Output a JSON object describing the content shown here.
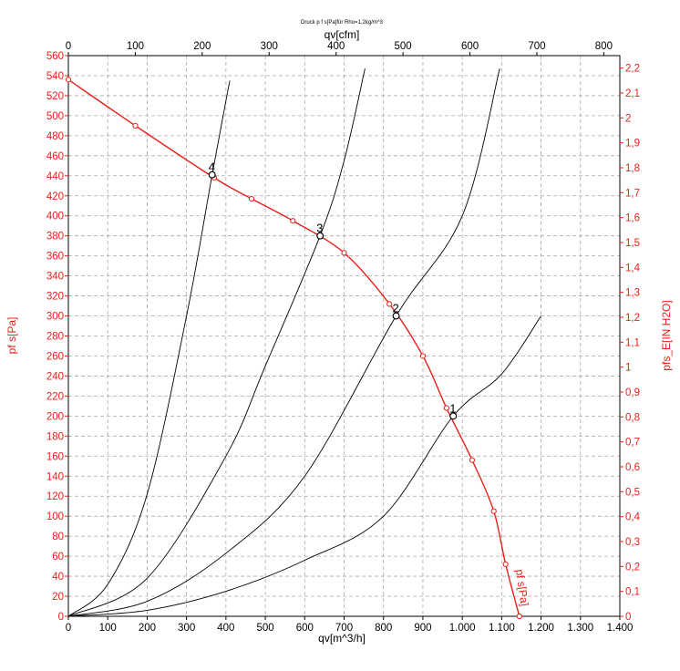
{
  "chart_data": {
    "type": "line",
    "title": "Druck p f s[Pa]für Rho=1,2kg/m^3",
    "xlabel": "qv[m^3/h]",
    "xlabel_top": "qv[cfm]",
    "ylabel": "pf s[Pa]",
    "ylabel_right": "pfs_E[IN H2O]",
    "xlim": [
      0,
      1400
    ],
    "xlim_top": [
      0,
      824
    ],
    "ylim": [
      0,
      560
    ],
    "ylim_right": [
      0,
      2.25
    ],
    "grid": true,
    "x_ticks": [
      "0",
      "100",
      "200",
      "300",
      "400",
      "500",
      "600",
      "700",
      "800",
      "900",
      "1.000",
      "1.100",
      "1.200",
      "1.300",
      "1.400"
    ],
    "x_top_ticks": [
      "0",
      "100",
      "200",
      "300",
      "400",
      "500",
      "600",
      "700",
      "800"
    ],
    "y_ticks": [
      "0",
      "20",
      "40",
      "60",
      "80",
      "100",
      "120",
      "140",
      "160",
      "180",
      "200",
      "220",
      "240",
      "260",
      "280",
      "300",
      "320",
      "340",
      "360",
      "380",
      "400",
      "420",
      "440",
      "460",
      "480",
      "500",
      "520",
      "540",
      "560"
    ],
    "y_right_ticks": [
      "0",
      "0,1",
      "0,2",
      "0,3",
      "0,4",
      "0,5",
      "0,6",
      "0,7",
      "0,8",
      "0,9",
      "1",
      "1,1",
      "1,2",
      "1,3",
      "1,4",
      "1,5",
      "1,6",
      "1,7",
      "1,8",
      "1,9",
      "2",
      "2,1",
      "2,2"
    ],
    "fan_curve": {
      "name": "pf s[Pa]",
      "color": "#e8201a",
      "x": [
        0,
        170,
        370,
        465,
        570,
        700,
        815,
        900,
        960,
        1025,
        1080,
        1110,
        1145
      ],
      "y": [
        536,
        490,
        438,
        417,
        395,
        363,
        312,
        260,
        208,
        156,
        105,
        52,
        0
      ]
    },
    "system_curves": [
      {
        "name": "1",
        "color": "#000000",
        "x": [
          0,
          200,
          400,
          600,
          800,
          977,
          1100,
          1200
        ],
        "y": [
          0,
          6,
          25,
          56,
          100,
          200,
          242,
          300
        ]
      },
      {
        "name": "2",
        "color": "#000000",
        "x": [
          0,
          200,
          400,
          600,
          832,
          1000,
          1095
        ],
        "y": [
          0,
          15,
          63,
          140,
          300,
          400,
          547
        ]
      },
      {
        "name": "3",
        "color": "#000000",
        "x": [
          0,
          200,
          400,
          500,
          639,
          700,
          753
        ],
        "y": [
          0,
          38,
          160,
          250,
          380,
          455,
          547
        ]
      },
      {
        "name": "4",
        "color": "#000000",
        "x": [
          0,
          100,
          200,
          300,
          365,
          400,
          410
        ],
        "y": [
          0,
          32,
          122,
          300,
          441,
          515,
          535
        ]
      }
    ],
    "operating_points": [
      {
        "label": "1",
        "x": 977,
        "y": 200
      },
      {
        "label": "2",
        "x": 832,
        "y": 300
      },
      {
        "label": "3",
        "x": 639,
        "y": 380
      },
      {
        "label": "4",
        "x": 365,
        "y": 441
      }
    ]
  },
  "colors": {
    "red": "#e8201a",
    "grid": "#a8a8a8",
    "black": "#000000"
  }
}
